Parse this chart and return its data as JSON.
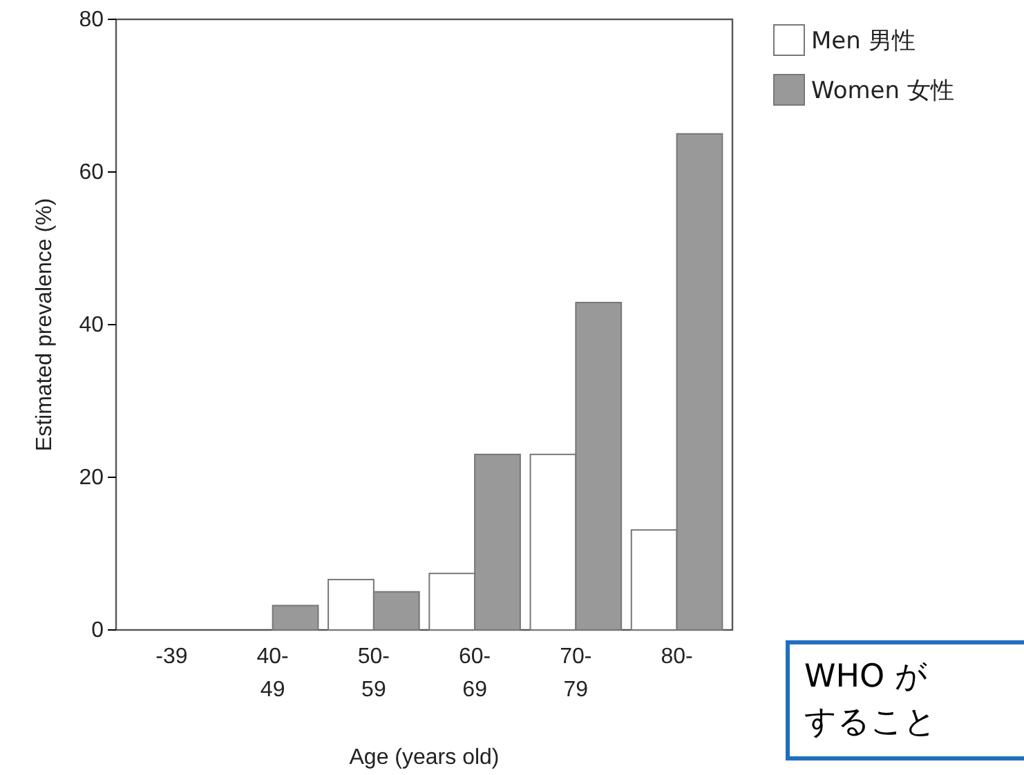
{
  "chart_data": {
    "type": "bar",
    "xlabel": "Age (years old)",
    "ylabel": "Estimated prevalence (%)",
    "categories": [
      "-39",
      "40-\n49",
      "50-\n59",
      "60-\n69",
      "70-\n79",
      "80-"
    ],
    "series": [
      {
        "name": "Men 男性",
        "color": "#ffffff",
        "values": [
          0,
          0,
          6.6,
          7.4,
          23,
          13.1
        ]
      },
      {
        "name": "Women 女性",
        "color": "#999999",
        "values": [
          0,
          3.2,
          5,
          23,
          42.9,
          65
        ]
      }
    ],
    "ylim": [
      0,
      80
    ],
    "yticks": [
      0,
      20,
      40,
      60,
      80
    ],
    "legend": "top right",
    "annotations": [
      "WHO が",
      "すること"
    ]
  }
}
